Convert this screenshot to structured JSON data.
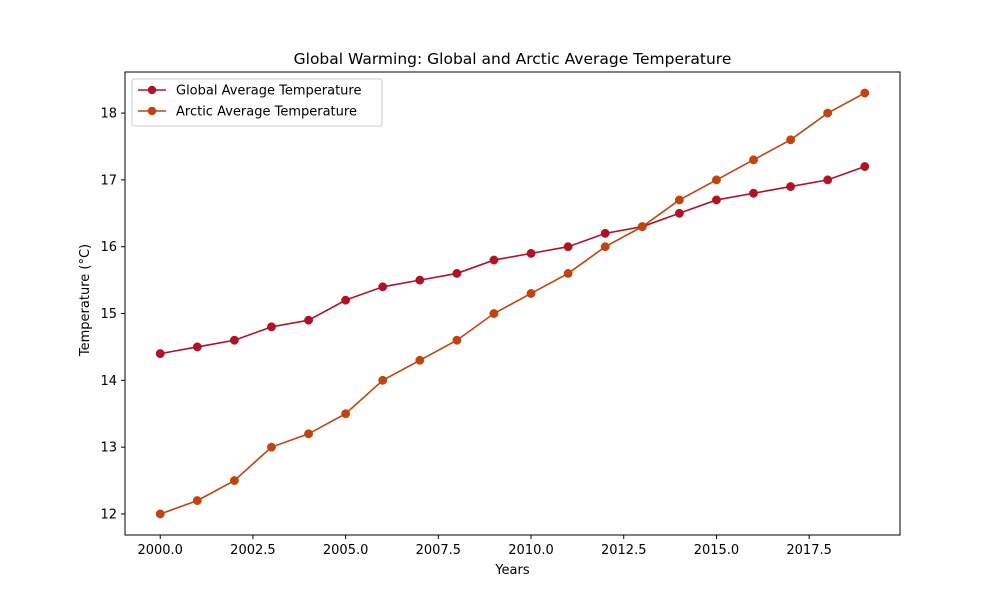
{
  "chart_data": {
    "type": "line",
    "title": "Global Warming: Global and Arctic Average Temperature",
    "xlabel": "Years",
    "ylabel": "Temperature (°C)",
    "xlim": [
      1999.05,
      2019.95
    ],
    "ylim": [
      11.685,
      18.615
    ],
    "xticks": [
      2000.0,
      2002.5,
      2005.0,
      2007.5,
      2010.0,
      2012.5,
      2015.0,
      2017.5
    ],
    "xtick_labels": [
      "2000.0",
      "2002.5",
      "2005.0",
      "2007.5",
      "2010.0",
      "2012.5",
      "2015.0",
      "2017.5"
    ],
    "yticks": [
      12,
      13,
      14,
      15,
      16,
      17,
      18
    ],
    "ytick_labels": [
      "12",
      "13",
      "14",
      "15",
      "16",
      "17",
      "18"
    ],
    "grid": false,
    "legend_position": "top-left",
    "x": [
      2000,
      2001,
      2002,
      2003,
      2004,
      2005,
      2006,
      2007,
      2008,
      2009,
      2010,
      2011,
      2012,
      2013,
      2014,
      2015,
      2016,
      2017,
      2018,
      2019
    ],
    "series": [
      {
        "name": "Global Average Temperature",
        "color": "#b11226",
        "values": [
          14.4,
          14.5,
          14.6,
          14.8,
          14.9,
          15.2,
          15.4,
          15.5,
          15.6,
          15.8,
          15.9,
          16.0,
          16.2,
          16.3,
          16.5,
          16.7,
          16.8,
          16.9,
          17.0,
          17.2
        ]
      },
      {
        "name": "Arctic Average Temperature",
        "color": "#c0440f",
        "values": [
          12.0,
          12.2,
          12.5,
          13.0,
          13.2,
          13.5,
          14.0,
          14.3,
          14.6,
          15.0,
          15.3,
          15.6,
          16.0,
          16.3,
          16.7,
          17.0,
          17.3,
          17.6,
          18.0,
          18.3
        ]
      }
    ]
  }
}
